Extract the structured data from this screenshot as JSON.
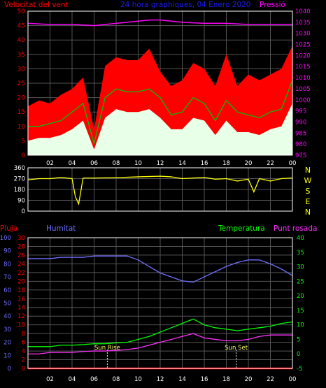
{
  "colors": {
    "background": "#000000",
    "frame": "#ffffff",
    "grid": "#555555",
    "tick_label": "#ffffff",
    "wind_gust": "#ff0000",
    "wind_avg": "#00c000",
    "wind_min": "#e8ffe8",
    "pressure": "#ff00ff",
    "direction": "#ffff00",
    "compass": "#ffff00",
    "rain": "#ff0000",
    "humidity": "#7070ff",
    "temperature": "#00ff00",
    "dew_point": "#ff33ff",
    "sun": "#ffffff"
  },
  "header": {
    "wind_label": "Velocitat del vent",
    "title": "24 hora graphiques, 04 Enero 2020",
    "pressure_label": "Pressió"
  },
  "compass": [
    "N",
    "W",
    "S",
    "E",
    "N"
  ],
  "bottom_header": {
    "rain_label": "Pluja",
    "humidity_label": "Humitat",
    "temp_label": "Temperatura",
    "dew_label": "Punt rosada"
  },
  "x_ticks": [
    "02",
    "04",
    "06",
    "08",
    "10",
    "12",
    "14",
    "16",
    "18",
    "20",
    "22",
    "00"
  ],
  "chart_data": [
    {
      "type": "area",
      "title": "24 hora graphiques, 04 Enero 2020",
      "x_unit": "hour",
      "y_left_label": "Velocitat del vent",
      "y_left_ticks": [
        "0",
        "5",
        "10",
        "15",
        "20",
        "25",
        "30",
        "35",
        "40",
        "45",
        "50"
      ],
      "ylim_left": [
        0,
        50
      ],
      "y_right_label": "Pressió",
      "y_right_ticks": [
        "975",
        "980",
        "985",
        "990",
        "995",
        "1000",
        "1005",
        "1010",
        "1015",
        "1020",
        "1025",
        "1030",
        "1035",
        "1040"
      ],
      "ylim_right": [
        975,
        1040
      ],
      "grid": true,
      "series": [
        {
          "name": "Wind gust",
          "x": [
            0,
            1,
            2,
            3,
            4,
            5,
            6,
            7,
            8,
            9,
            10,
            11,
            12,
            13,
            14,
            15,
            16,
            17,
            18,
            19,
            20,
            21,
            22,
            23,
            24
          ],
          "values": [
            17,
            19,
            18,
            21,
            23,
            27,
            9,
            31,
            34,
            33,
            33,
            37,
            29,
            24,
            26,
            32,
            30,
            24,
            35,
            24,
            28,
            26,
            28,
            30,
            38
          ]
        },
        {
          "name": "Wind average",
          "x": [
            0,
            1,
            2,
            3,
            4,
            5,
            6,
            7,
            8,
            9,
            10,
            11,
            12,
            13,
            14,
            15,
            16,
            17,
            18,
            19,
            20,
            21,
            22,
            23,
            24
          ],
          "values": [
            10,
            10,
            11,
            12,
            15,
            18,
            4,
            20,
            23,
            22,
            22,
            23,
            20,
            14,
            15,
            20,
            18,
            12,
            19,
            15,
            14,
            13,
            15,
            16,
            26
          ]
        },
        {
          "name": "Wind minimum",
          "x": [
            0,
            1,
            2,
            3,
            4,
            5,
            6,
            7,
            8,
            9,
            10,
            11,
            12,
            13,
            14,
            15,
            16,
            17,
            18,
            19,
            20,
            21,
            22,
            23,
            24
          ],
          "values": [
            5,
            6,
            6,
            7,
            9,
            12,
            2,
            13,
            16,
            15,
            15,
            16,
            13,
            9,
            9,
            13,
            12,
            7,
            12,
            8,
            8,
            7,
            9,
            10,
            18
          ]
        },
        {
          "name": "Pressió",
          "x": [
            0,
            2,
            4,
            6,
            8,
            10,
            11,
            12,
            13,
            14,
            16,
            18,
            20,
            22,
            24
          ],
          "values": [
            1034.5,
            1034,
            1034,
            1033.5,
            1034.5,
            1035.5,
            1036,
            1036,
            1035.5,
            1035,
            1034.5,
            1034.5,
            1034,
            1034,
            1034
          ]
        }
      ]
    },
    {
      "type": "line",
      "x_unit": "hour",
      "y_ticks": [
        "360",
        "270",
        "180",
        "90",
        "0"
      ],
      "ylim": [
        0,
        360
      ],
      "grid": true,
      "series": [
        {
          "name": "Wind direction",
          "x": [
            0,
            1,
            2,
            3,
            4,
            4.3,
            4.6,
            5,
            6,
            8,
            10,
            12,
            13,
            14,
            16,
            17,
            18,
            19,
            20,
            20.5,
            21,
            22,
            23,
            24
          ],
          "values": [
            260,
            270,
            270,
            280,
            270,
            120,
            60,
            275,
            275,
            278,
            285,
            290,
            285,
            270,
            280,
            265,
            270,
            250,
            265,
            160,
            270,
            250,
            270,
            275
          ]
        }
      ]
    },
    {
      "type": "line",
      "x_unit": "hour",
      "y_rain_label": "Pluja",
      "y_rain_ticks": [
        "0",
        "2",
        "4",
        "6",
        "8",
        "10",
        "12",
        "14",
        "16",
        "18",
        "20",
        "22",
        "24",
        "26",
        "28",
        "30"
      ],
      "ylim_rain": [
        0,
        30
      ],
      "y_humidity_label": "Humitat",
      "y_humidity_ticks": [
        "0",
        "10",
        "20",
        "30",
        "40",
        "50",
        "60",
        "70",
        "80",
        "90",
        "100"
      ],
      "ylim_humidity": [
        0,
        100
      ],
      "y_temp_label": "Temperatura",
      "y_temp_ticks": [
        "-5",
        "0",
        "5",
        "10",
        "15",
        "20",
        "25",
        "30",
        "35",
        "40"
      ],
      "ylim_temp": [
        -5,
        40
      ],
      "annotations": [
        {
          "text": "Sun Rise",
          "x": 7.2
        },
        {
          "text": "Sun Set",
          "x": 18.9
        }
      ],
      "grid": true,
      "series": [
        {
          "name": "Humitat",
          "x": [
            0,
            1,
            2,
            3,
            4,
            5,
            6,
            7,
            8,
            9,
            10,
            11,
            12,
            13,
            14,
            15,
            16,
            17,
            18,
            19,
            20,
            21,
            22,
            23,
            24
          ],
          "values": [
            84,
            84,
            84,
            85,
            85,
            85,
            86,
            86,
            86,
            86,
            83,
            78,
            73,
            70,
            67,
            66,
            70,
            74,
            78,
            81,
            83,
            83,
            80,
            76,
            71
          ]
        },
        {
          "name": "Temperatura",
          "x": [
            0,
            1,
            2,
            3,
            4,
            5,
            6,
            7,
            8,
            9,
            10,
            11,
            12,
            13,
            14,
            15,
            16,
            17,
            18,
            19,
            20,
            21,
            22,
            23,
            24
          ],
          "values": [
            2.5,
            2.5,
            2.5,
            3,
            3,
            3.2,
            3.5,
            3.5,
            3.8,
            4,
            5,
            6,
            7.5,
            9,
            10.5,
            12,
            10,
            9,
            8.5,
            8,
            8.5,
            9,
            9.5,
            10.5,
            11
          ]
        },
        {
          "name": "Punt rosada",
          "x": [
            0,
            1,
            2,
            3,
            4,
            5,
            6,
            7,
            8,
            9,
            10,
            11,
            12,
            13,
            14,
            15,
            16,
            17,
            18,
            19,
            20,
            21,
            22,
            23,
            24
          ],
          "values": [
            0,
            0,
            0.5,
            0.5,
            0.5,
            0.8,
            1,
            1,
            1.2,
            1.5,
            2,
            3,
            4,
            5,
            6,
            7,
            5.5,
            5,
            4.5,
            4.5,
            5,
            6,
            6.5,
            6.5,
            6.5
          ]
        },
        {
          "name": "Pluja",
          "x": [
            0,
            24
          ],
          "values": [
            0,
            0
          ]
        }
      ]
    }
  ]
}
